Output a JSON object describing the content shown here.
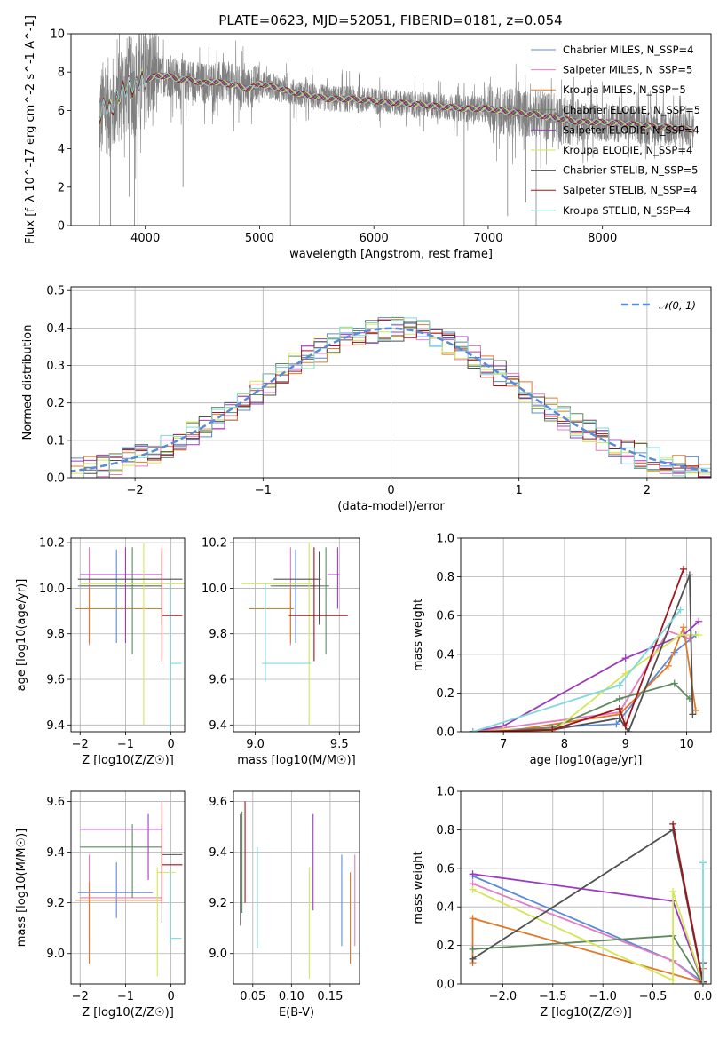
{
  "figure_title": "PLATE=0623, MJD=52051, FIBERID=0181, z=0.054",
  "series_colors": [
    "#5b8ad8",
    "#e27fbf",
    "#e07a2a",
    "#5e8a60",
    "#9d3bbf",
    "#d5e654",
    "#505050",
    "#a2141b",
    "#7fd9dc"
  ],
  "chart_data": [
    {
      "type": "line",
      "title": "PLATE=0623, MJD=52051, FIBERID=0181, z=0.054",
      "xlabel": "wavelength [Angstrom, rest frame]",
      "ylabel": "Flux [f_λ 10^-17 erg cm^-2 s^-1 A^-1]",
      "xlim": [
        3350,
        8950
      ],
      "ylim": [
        0,
        10
      ],
      "xticks": [
        4000,
        5000,
        6000,
        7000,
        8000
      ],
      "yticks": [
        0,
        2,
        4,
        6,
        8,
        10
      ],
      "legend_position": "upper-right",
      "data_color": "#808080",
      "series": [
        {
          "name": "Chabrier MILES, N_SSP=4"
        },
        {
          "name": "Salpeter MILES, N_SSP=5"
        },
        {
          "name": "Kroupa MILES, N_SSP=5"
        },
        {
          "name": "Chabrier ELODIE, N_SSP=5"
        },
        {
          "name": "Salpeter ELODIE, N_SSP=4"
        },
        {
          "name": "Kroupa ELODIE, N_SSP=4"
        },
        {
          "name": "Chabrier STELIB, N_SSP=5"
        },
        {
          "name": "Salpeter STELIB, N_SSP=4"
        },
        {
          "name": "Kroupa STELIB, N_SSP=4"
        }
      ],
      "continuum": {
        "x": [
          3600,
          3650,
          3700,
          3750,
          3800,
          3850,
          3900,
          3950,
          4000,
          4100,
          4200,
          4300,
          4400,
          4500,
          4600,
          4700,
          4800,
          4900,
          5000,
          5200,
          5400,
          5600,
          5800,
          6000,
          6200,
          6400,
          6600,
          6800,
          7000,
          7200,
          7400,
          7600,
          7800,
          8000,
          8200,
          8400,
          8600,
          8800
        ],
        "y": [
          5.7,
          6.3,
          6.1,
          6.6,
          7.0,
          7.4,
          7.1,
          7.6,
          7.6,
          7.8,
          7.8,
          7.6,
          7.6,
          7.4,
          7.5,
          7.4,
          7.3,
          7.1,
          7.4,
          7.1,
          6.8,
          6.6,
          6.6,
          6.5,
          6.4,
          6.3,
          6.2,
          6.1,
          6.1,
          5.9,
          5.8,
          5.6,
          5.4,
          5.4,
          5.3,
          5.2,
          5.1,
          5.0
        ]
      }
    },
    {
      "type": "line",
      "xlabel": "(data-model)/error",
      "ylabel": "Normed distribution",
      "xlim": [
        -2.5,
        2.5
      ],
      "ylim": [
        0,
        0.51
      ],
      "xticks": [
        -2,
        -1,
        0,
        1,
        2
      ],
      "yticks": [
        0.0,
        0.1,
        0.2,
        0.3,
        0.4,
        0.5
      ],
      "grid": true,
      "legend_position": "upper-right",
      "reference_curve": {
        "name": "N(0,1)",
        "mu": 0,
        "sigma": 1
      },
      "bin_width": 0.1
    },
    {
      "type": "scatter",
      "xlabel": "Z [log10(Z/Z☉)]",
      "ylabel": "age  [log10(age/yr)]",
      "xlim": [
        -2.2,
        0.3
      ],
      "ylim": [
        9.37,
        10.22
      ],
      "xticks": [
        -2,
        -1,
        0
      ],
      "yticks": [
        9.4,
        9.6,
        9.8,
        10.0,
        10.2
      ],
      "grid": true,
      "points": [
        {
          "series": 0,
          "x": -1.2,
          "xerr": [
            0.85,
            0.8
          ],
          "y": 10.01,
          "yerr": [
            0.25,
            0.16
          ]
        },
        {
          "series": 1,
          "x": -1.8,
          "xerr": [
            0.2,
            1.6
          ],
          "y": 10.01,
          "yerr": [
            0.26,
            0.17
          ]
        },
        {
          "series": 2,
          "x": -1.8,
          "xerr": [
            0.3,
            1.6
          ],
          "y": 9.91,
          "yerr": [
            0.15,
            0.09
          ]
        },
        {
          "series": 3,
          "x": -0.85,
          "xerr": [
            1.15,
            0.65
          ],
          "y": 10.01,
          "yerr": [
            0.3,
            0.17
          ]
        },
        {
          "series": 4,
          "x": -1.0,
          "xerr": [
            1.0,
            0.8
          ],
          "y": 10.06,
          "yerr": [
            0.3,
            0.12
          ]
        },
        {
          "series": 5,
          "x": -0.6,
          "xerr": [
            1.4,
            0.9
          ],
          "y": 10.02,
          "yerr": [
            0.62,
            0.18
          ]
        },
        {
          "series": 6,
          "x": -0.2,
          "xerr": [
            1.85,
            0.45
          ],
          "y": 10.04,
          "yerr": [
            0.2,
            0.12
          ]
        },
        {
          "series": 7,
          "x": -0.2,
          "xerr": [
            0.0,
            0.45
          ],
          "y": 9.88,
          "yerr": [
            0.2,
            0.3
          ]
        },
        {
          "series": 8,
          "x": -0.02,
          "xerr": [
            0.0,
            0.25
          ],
          "y": 9.67,
          "yerr": [
            0.3,
            0.35
          ]
        }
      ]
    },
    {
      "type": "scatter",
      "xlabel": "mass [log10(M/M☉)]",
      "ylabel": "",
      "xlim": [
        8.87,
        9.62
      ],
      "ylim": [
        9.37,
        10.22
      ],
      "xticks": [
        9.0,
        9.5
      ],
      "yticks": [
        9.4,
        9.6,
        9.8,
        10.0,
        10.2
      ],
      "grid": true,
      "points": [
        {
          "series": 0,
          "x": 9.24,
          "xerr": [
            0.1,
            0.15
          ],
          "y": 10.01,
          "yerr": [
            0.25,
            0.16
          ]
        },
        {
          "series": 1,
          "x": 9.21,
          "xerr": [
            0.1,
            0.15
          ],
          "y": 10.01,
          "yerr": [
            0.26,
            0.17
          ]
        },
        {
          "series": 2,
          "x": 9.21,
          "xerr": [
            0.25,
            0.02
          ],
          "y": 9.91,
          "yerr": [
            0.15,
            0.09
          ]
        },
        {
          "series": 3,
          "x": 9.42,
          "xerr": [
            0.33,
            0.02
          ],
          "y": 10.01,
          "yerr": [
            0.3,
            0.17
          ]
        },
        {
          "series": 4,
          "x": 9.49,
          "xerr": [
            0.06,
            0.01
          ],
          "y": 10.06,
          "yerr": [
            0.15,
            0.12
          ]
        },
        {
          "series": 5,
          "x": 9.32,
          "xerr": [
            0.4,
            0.02
          ],
          "y": 10.02,
          "yerr": [
            0.62,
            0.18
          ]
        },
        {
          "series": 6,
          "x": 9.38,
          "xerr": [
            0.27,
            0.01
          ],
          "y": 10.04,
          "yerr": [
            0.2,
            0.12
          ]
        },
        {
          "series": 7,
          "x": 9.35,
          "xerr": [
            0.15,
            0.2
          ],
          "y": 9.88,
          "yerr": [
            0.2,
            0.3
          ]
        },
        {
          "series": 8,
          "x": 9.06,
          "xerr": [
            0.02,
            0.27
          ],
          "y": 9.67,
          "yerr": [
            0.08,
            0.35
          ]
        }
      ]
    },
    {
      "type": "line",
      "xlabel": "age  [log10(age/yr)]",
      "ylabel": "mass weight",
      "xlim": [
        6.3,
        10.4
      ],
      "ylim": [
        0,
        1.0
      ],
      "xticks": [
        7,
        8,
        9,
        10
      ],
      "yticks": [
        0.0,
        0.2,
        0.4,
        0.6,
        0.8,
        1.0
      ],
      "grid": true,
      "series": [
        {
          "series": 0,
          "x": [
            6.5,
            8.85,
            9.8,
            10.15
          ],
          "y": [
            0.0,
            0.04,
            0.41,
            0.5
          ]
        },
        {
          "series": 1,
          "x": [
            6.5,
            7.0,
            8.9,
            9.7,
            10.05
          ],
          "y": [
            0.0,
            0.02,
            0.1,
            0.52,
            0.48
          ]
        },
        {
          "series": 2,
          "x": [
            6.5,
            7.0,
            8.9,
            9.7,
            9.95,
            10.15
          ],
          "y": [
            0.0,
            0.0,
            0.09,
            0.34,
            0.54,
            0.11
          ]
        },
        {
          "series": 3,
          "x": [
            6.5,
            7.8,
            8.9,
            9.8,
            10.05
          ],
          "y": [
            0.0,
            0.02,
            0.17,
            0.25,
            0.17
          ]
        },
        {
          "series": 4,
          "x": [
            6.5,
            7.0,
            9.0,
            9.95,
            10.2
          ],
          "y": [
            0.0,
            0.03,
            0.38,
            0.5,
            0.57
          ]
        },
        {
          "series": 5,
          "x": [
            6.5,
            7.0,
            7.8,
            9.0,
            9.9,
            10.2
          ],
          "y": [
            0.0,
            0.01,
            0.0,
            0.3,
            0.5,
            0.5
          ]
        },
        {
          "series": 6,
          "x": [
            6.5,
            7.8,
            8.9,
            9.05,
            10.05,
            10.1
          ],
          "y": [
            0.0,
            0.01,
            0.07,
            0.0,
            0.81,
            0.09
          ]
        },
        {
          "series": 7,
          "x": [
            6.5,
            7.8,
            8.9,
            9.0,
            9.95
          ],
          "y": [
            0.0,
            0.01,
            0.12,
            0.03,
            0.84
          ]
        },
        {
          "series": 8,
          "x": [
            6.5,
            8.9,
            9.9
          ],
          "y": [
            0.0,
            0.24,
            0.63
          ]
        }
      ]
    },
    {
      "type": "scatter",
      "xlabel": "Z [log10(Z/Z☉)]",
      "ylabel": "mass [log10(M/M☉)]",
      "xlim": [
        -2.2,
        0.3
      ],
      "ylim": [
        8.88,
        9.64
      ],
      "xticks": [
        -2,
        -1,
        0
      ],
      "yticks": [
        9.0,
        9.2,
        9.4,
        9.6
      ],
      "grid": true,
      "points": [
        {
          "series": 0,
          "x": -1.2,
          "xerr": [
            0.85,
            0.8
          ],
          "y": 9.24,
          "yerr": [
            0.1,
            0.12
          ]
        },
        {
          "series": 1,
          "x": -1.8,
          "xerr": [
            0.2,
            1.6
          ],
          "y": 9.22,
          "yerr": [
            0.18,
            0.17
          ]
        },
        {
          "series": 2,
          "x": -1.8,
          "xerr": [
            0.3,
            1.6
          ],
          "y": 9.21,
          "yerr": [
            0.25,
            0.07
          ]
        },
        {
          "series": 3,
          "x": -0.85,
          "xerr": [
            1.15,
            0.65
          ],
          "y": 9.42,
          "yerr": [
            0.2,
            0.09
          ]
        },
        {
          "series": 4,
          "x": -0.5,
          "xerr": [
            1.5,
            0.3
          ],
          "y": 9.49,
          "yerr": [
            0.2,
            0.06
          ]
        },
        {
          "series": 5,
          "x": -0.3,
          "xerr": [
            0.0,
            0.4
          ],
          "y": 9.32,
          "yerr": [
            0.41,
            0.02
          ]
        },
        {
          "series": 6,
          "x": -0.2,
          "xerr": [
            0.0,
            0.45
          ],
          "y": 9.39,
          "yerr": [
            0.27,
            0.12
          ]
        },
        {
          "series": 7,
          "x": -0.2,
          "xerr": [
            0.0,
            0.45
          ],
          "y": 9.35,
          "yerr": [
            0.15,
            0.25
          ]
        },
        {
          "series": 8,
          "x": -0.02,
          "xerr": [
            0.0,
            0.25
          ],
          "y": 9.06,
          "yerr": [
            0.02,
            0.27
          ]
        }
      ]
    },
    {
      "type": "scatter",
      "xlabel": "E(B-V)",
      "ylabel": "",
      "xlim": [
        0.025,
        0.188
      ],
      "ylim": [
        8.88,
        9.64
      ],
      "xticks": [
        0.05,
        0.1,
        0.15
      ],
      "yticks": [
        9.0,
        9.2,
        9.4,
        9.6
      ],
      "grid": true,
      "points": [
        {
          "series": 0,
          "x": 0.165,
          "y": 9.21,
          "yerr": [
            0.18,
            0.18
          ]
        },
        {
          "series": 1,
          "x": 0.182,
          "y": 9.21,
          "yerr": [
            0.18,
            0.18
          ]
        },
        {
          "series": 2,
          "x": 0.176,
          "y": 9.14,
          "yerr": [
            0.18,
            0.18
          ]
        },
        {
          "series": 3,
          "x": 0.036,
          "y": 9.36,
          "yerr": [
            0.2,
            0.2
          ]
        },
        {
          "series": 4,
          "x": 0.128,
          "y": 9.37,
          "yerr": [
            0.2,
            0.18
          ]
        },
        {
          "series": 5,
          "x": 0.123,
          "y": 9.12,
          "yerr": [
            0.22,
            0.22
          ]
        },
        {
          "series": 6,
          "x": 0.034,
          "y": 9.33,
          "yerr": [
            0.22,
            0.22
          ]
        },
        {
          "series": 7,
          "x": 0.04,
          "y": 9.4,
          "yerr": [
            0.2,
            0.2
          ]
        },
        {
          "series": 8,
          "x": 0.056,
          "y": 9.22,
          "yerr": [
            0.2,
            0.2
          ]
        }
      ]
    },
    {
      "type": "line",
      "xlabel": "Z [log10(Z/Z☉)]",
      "ylabel": "mass weight",
      "xlim": [
        -2.42,
        0.08
      ],
      "ylim": [
        0,
        1.0
      ],
      "xticks": [
        -2.0,
        -1.5,
        -1.0,
        -0.5,
        0.0
      ],
      "yticks": [
        0.0,
        0.2,
        0.4,
        0.6,
        0.8,
        1.0
      ],
      "grid": true,
      "series": [
        {
          "series": 0,
          "x": [
            -2.3,
            -0.3,
            0.0
          ],
          "y": [
            0.56,
            0.12,
            0.01
          ]
        },
        {
          "series": 1,
          "x": [
            -2.3,
            -0.3,
            0.0
          ],
          "y": [
            0.52,
            0.12,
            0.0
          ]
        },
        {
          "series": 2,
          "x": [
            -2.3,
            -2.3,
            -0.02,
            0.0
          ],
          "y": [
            0.11,
            0.34,
            0.01,
            0.08
          ]
        },
        {
          "series": 3,
          "x": [
            -2.3,
            -0.3,
            0.0
          ],
          "y": [
            0.18,
            0.25,
            0.0
          ]
        },
        {
          "series": 4,
          "x": [
            -2.3,
            -0.3,
            0.0
          ],
          "y": [
            0.57,
            0.43,
            0.0
          ]
        },
        {
          "series": 5,
          "x": [
            -2.3,
            -0.3,
            -0.3,
            0.0
          ],
          "y": [
            0.49,
            0.02,
            0.48,
            0.0
          ]
        },
        {
          "series": 6,
          "x": [
            -2.3,
            -0.3,
            0.0,
            0.0
          ],
          "y": [
            0.13,
            0.8,
            0.0,
            0.11
          ]
        },
        {
          "series": 7,
          "x": [
            -0.3,
            0.0
          ],
          "y": [
            0.83,
            0.01
          ]
        },
        {
          "series": 8,
          "x": [
            0.0,
            0.0
          ],
          "y": [
            0.0,
            0.63
          ]
        }
      ]
    }
  ]
}
